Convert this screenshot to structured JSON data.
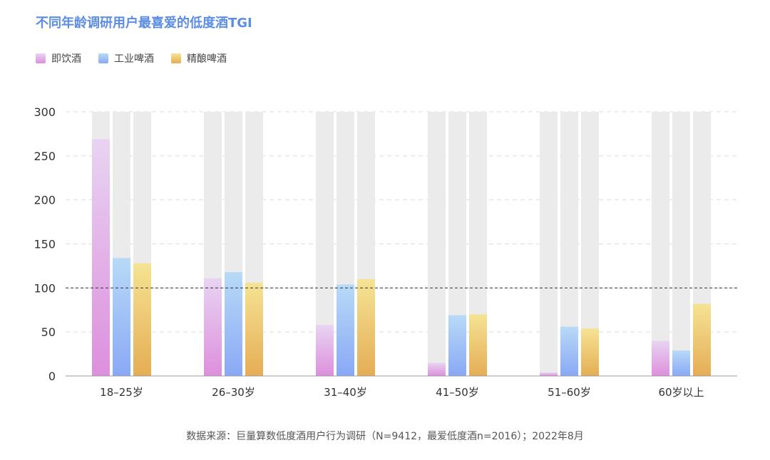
{
  "title": "不同年龄调研用户最喜爱的低度酒TGI",
  "legend": [
    {
      "label": "即饮酒",
      "color_top": "#e8d4f2",
      "color_bottom": "#dd8fdc"
    },
    {
      "label": "工业啤酒",
      "color_top": "#b8daf7",
      "color_bottom": "#89a8f5"
    },
    {
      "label": "精酿啤酒",
      "color_top": "#f5e394",
      "color_bottom": "#e5ad55"
    }
  ],
  "source": "数据来源：巨量算数低度酒用户行为调研（N=9412，最爱低度酒n=2016）；2022年8月",
  "chart_data": {
    "type": "bar",
    "title": "不同年龄调研用户最喜爱的低度酒TGI",
    "categories": [
      "18–25岁",
      "26–30岁",
      "31–40岁",
      "41–50岁",
      "51–60岁",
      "60岁以上"
    ],
    "series": [
      {
        "name": "即饮酒",
        "values": [
          269,
          111,
          58,
          15,
          4,
          40
        ]
      },
      {
        "name": "工业啤酒",
        "values": [
          134,
          118,
          104,
          69,
          56,
          29
        ]
      },
      {
        "name": "精酿啤酒",
        "values": [
          128,
          106,
          110,
          70,
          54,
          82
        ]
      }
    ],
    "ylim": [
      0,
      300
    ],
    "yticks": [
      "0",
      "50",
      "100",
      "150",
      "200",
      "250",
      "300"
    ],
    "reference_line": 100,
    "background_bar_max": 300,
    "grid": true,
    "legend_position": "top-left"
  }
}
